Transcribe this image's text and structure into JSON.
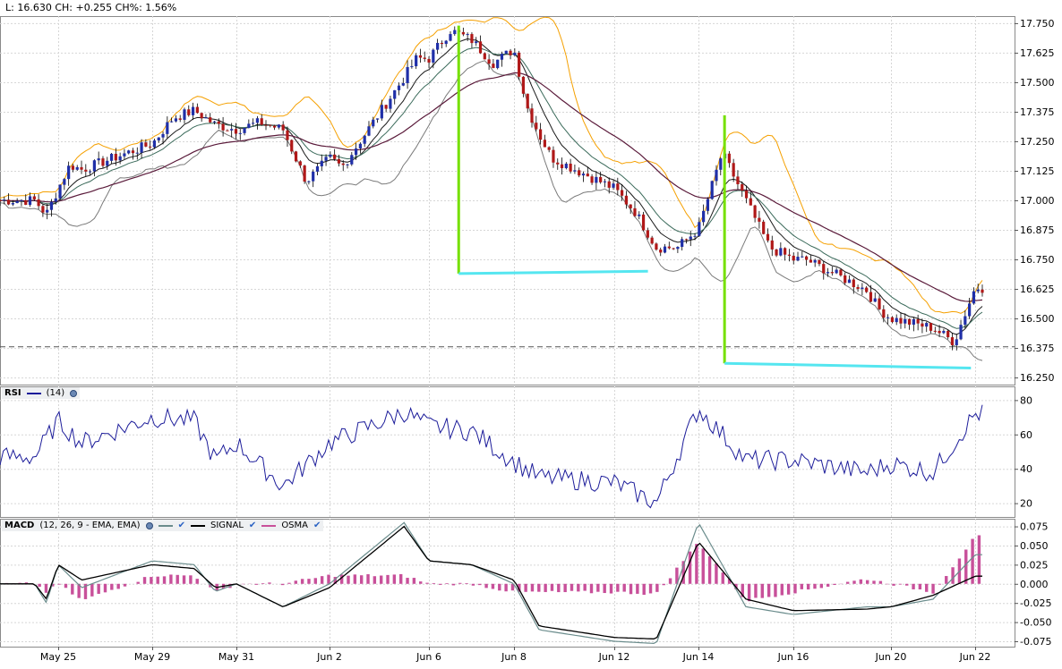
{
  "header": {
    "quote": "L: 16.630 CH: +0.255 CH%: 1.56%"
  },
  "rsi_panel": {
    "title": "RSI",
    "param": "(14)"
  },
  "macd_panel": {
    "title": "MACD",
    "params": "(12, 26, 9 - EMA, EMA)",
    "signal_label": "SIGNAL",
    "osma_label": "OSMA"
  },
  "colors": {
    "up": "#1f2fa8",
    "down": "#b01818",
    "envelope_upper": "#f5a000",
    "envelope_lower": "#7a7a7a",
    "ma_long": "#5a1a3a",
    "trend_vertical": "#76e000",
    "trend_horizontal": "#55e6f0",
    "rsi": "#1c1c9a",
    "macd": "#6a8c8c",
    "signal": "#000000",
    "osma": "#c8509a"
  },
  "chart_data": [
    {
      "type": "candlestick",
      "x_ticks": [
        "May 25",
        "May 29",
        "May 31",
        "Jun 2",
        "Jun 6",
        "Jun 8",
        "Jun 12",
        "Jun 14",
        "Jun 16",
        "Jun 20",
        "Jun 22"
      ],
      "y_ticks": [
        "17.750",
        "17.625",
        "17.500",
        "17.375",
        "17.250",
        "17.125",
        "17.000",
        "16.875",
        "16.750",
        "16.625",
        "16.500",
        "16.375",
        "16.250"
      ],
      "ylim": [
        16.22,
        17.78
      ],
      "last_price": 16.63,
      "reference_line": 16.38,
      "anchor_closes": [
        [
          "May 24",
          17.0
        ],
        [
          "May 24",
          16.94
        ],
        [
          "May 25",
          17.05
        ],
        [
          "May 25",
          17.15
        ],
        [
          "May 26",
          17.13
        ],
        [
          "May 29",
          17.24
        ],
        [
          "May 29",
          17.35
        ],
        [
          "May 30",
          17.38
        ],
        [
          "May 30",
          17.32
        ],
        [
          "May 31",
          17.3
        ],
        [
          "May 31",
          17.33
        ],
        [
          "Jun 1",
          17.3
        ],
        [
          "Jun 1",
          17.08
        ],
        [
          "Jun 2",
          17.18
        ],
        [
          "Jun 2",
          17.14
        ],
        [
          "Jun 5",
          17.52
        ],
        [
          "Jun 5",
          17.6
        ],
        [
          "Jun 6",
          17.6
        ],
        [
          "Jun 6",
          17.72
        ],
        [
          "Jun 7",
          17.68
        ],
        [
          "Jun 7",
          17.58
        ],
        [
          "Jun 8",
          17.64
        ],
        [
          "Jun 8",
          17.4
        ],
        [
          "Jun 9",
          17.28
        ],
        [
          "Jun 9",
          17.18
        ],
        [
          "Jun 12",
          17.05
        ],
        [
          "Jun 12",
          16.95
        ],
        [
          "Jun 13",
          16.8
        ],
        [
          "Jun 13",
          16.8
        ],
        [
          "Jun 14",
          16.88
        ],
        [
          "Jun 14",
          17.2
        ],
        [
          "Jun 15",
          17.0
        ],
        [
          "Jun 15",
          16.8
        ],
        [
          "Jun 16",
          16.75
        ],
        [
          "Jun 16",
          16.75
        ],
        [
          "Jun 19",
          16.62
        ],
        [
          "Jun 19",
          16.54
        ],
        [
          "Jun 20",
          16.5
        ],
        [
          "Jun 20",
          16.48
        ],
        [
          "Jun 21",
          16.46
        ],
        [
          "Jun 21",
          16.4
        ],
        [
          "Jun 22",
          16.63
        ]
      ]
    },
    {
      "type": "line",
      "name": "RSI",
      "y_ticks": [
        "80",
        "60",
        "40",
        "20"
      ],
      "ylim": [
        12,
        88
      ],
      "anchors": [
        [
          "May 24",
          47
        ],
        [
          "May 25",
          68
        ],
        [
          "May 26",
          55
        ],
        [
          "May 29",
          70
        ],
        [
          "May 30",
          68
        ],
        [
          "May 30",
          45
        ],
        [
          "May 31",
          55
        ],
        [
          "Jun 1",
          30
        ],
        [
          "Jun 2",
          55
        ],
        [
          "Jun 5",
          73
        ],
        [
          "Jun 6",
          65
        ],
        [
          "Jun 7",
          62
        ],
        [
          "Jun 8",
          44
        ],
        [
          "Jun 9",
          35
        ],
        [
          "Jun 12",
          32
        ],
        [
          "Jun 13",
          20
        ],
        [
          "Jun 14",
          75
        ],
        [
          "Jun 15",
          45
        ],
        [
          "Jun 16",
          45
        ],
        [
          "Jun 19",
          38
        ],
        [
          "Jun 20",
          43
        ],
        [
          "Jun 21",
          38
        ],
        [
          "Jun 22",
          72
        ]
      ]
    },
    {
      "type": "line",
      "name": "MACD",
      "y_ticks": [
        "0.075",
        "0.050",
        "0.025",
        "0.000",
        "-0.025",
        "-0.050",
        "-0.075"
      ],
      "ylim": [
        -0.082,
        0.085
      ],
      "anchors_macd": [
        [
          "May 24",
          0.0
        ],
        [
          "May 24",
          -0.025
        ],
        [
          "May 25",
          0.025
        ],
        [
          "May 26",
          -0.005
        ],
        [
          "May 29",
          0.03
        ],
        [
          "May 30",
          0.025
        ],
        [
          "May 30",
          -0.01
        ],
        [
          "May 31",
          0.0
        ],
        [
          "Jun 1",
          -0.03
        ],
        [
          "Jun 2",
          0.0
        ],
        [
          "Jun 5",
          0.08
        ],
        [
          "Jun 6",
          0.03
        ],
        [
          "Jun 7",
          0.025
        ],
        [
          "Jun 8",
          0.0
        ],
        [
          "Jun 9",
          -0.06
        ],
        [
          "Jun 12",
          -0.075
        ],
        [
          "Jun 13",
          -0.078
        ],
        [
          "Jun 14",
          0.08
        ],
        [
          "Jun 15",
          -0.03
        ],
        [
          "Jun 16",
          -0.04
        ],
        [
          "Jun 19",
          -0.03
        ],
        [
          "Jun 20",
          -0.03
        ],
        [
          "Jun 21",
          -0.02
        ],
        [
          "Jun 22",
          0.038
        ]
      ],
      "anchors_signal": [
        [
          "May 24",
          0.0
        ],
        [
          "May 24",
          -0.02
        ],
        [
          "May 25",
          0.025
        ],
        [
          "May 26",
          0.005
        ],
        [
          "May 29",
          0.025
        ],
        [
          "May 30",
          0.02
        ],
        [
          "May 30",
          -0.005
        ],
        [
          "May 31",
          0.0
        ],
        [
          "Jun 1",
          -0.03
        ],
        [
          "Jun 2",
          -0.005
        ],
        [
          "Jun 5",
          0.075
        ],
        [
          "Jun 6",
          0.03
        ],
        [
          "Jun 7",
          0.025
        ],
        [
          "Jun 8",
          0.005
        ],
        [
          "Jun 9",
          -0.055
        ],
        [
          "Jun 12",
          -0.07
        ],
        [
          "Jun 13",
          -0.072
        ],
        [
          "Jun 14",
          0.055
        ],
        [
          "Jun 15",
          -0.02
        ],
        [
          "Jun 16",
          -0.035
        ],
        [
          "Jun 19",
          -0.033
        ],
        [
          "Jun 20",
          -0.03
        ],
        [
          "Jun 21",
          -0.015
        ],
        [
          "Jun 22",
          0.01
        ]
      ]
    }
  ]
}
